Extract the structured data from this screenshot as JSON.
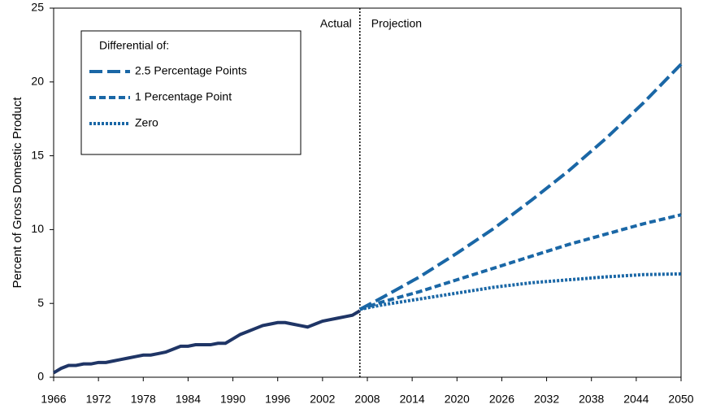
{
  "chart_data": {
    "type": "line",
    "ylabel": "Percent of Gross Domestic Product",
    "x": [
      1966,
      1967,
      1968,
      1969,
      1970,
      1971,
      1972,
      1973,
      1974,
      1975,
      1976,
      1977,
      1978,
      1979,
      1980,
      1981,
      1982,
      1983,
      1984,
      1985,
      1986,
      1987,
      1988,
      1989,
      1990,
      1991,
      1992,
      1993,
      1994,
      1995,
      1996,
      1997,
      1998,
      1999,
      2000,
      2001,
      2002,
      2003,
      2004,
      2005,
      2006,
      2007,
      2010,
      2015,
      2020,
      2025,
      2030,
      2035,
      2040,
      2045,
      2050
    ],
    "series": [
      {
        "color": "#1f3566",
        "dash": "solid",
        "values": [
          0.3,
          0.6,
          0.8,
          0.8,
          0.9,
          0.9,
          1.0,
          1.0,
          1.1,
          1.2,
          1.3,
          1.4,
          1.5,
          1.5,
          1.6,
          1.7,
          1.9,
          2.1,
          2.1,
          2.2,
          2.2,
          2.2,
          2.3,
          2.3,
          2.6,
          2.9,
          3.1,
          3.3,
          3.5,
          3.6,
          3.7,
          3.7,
          3.6,
          3.5,
          3.4,
          3.6,
          3.8,
          3.9,
          4.0,
          4.1,
          4.2,
          4.5,
          null,
          null,
          null,
          null,
          null,
          null,
          null,
          null,
          null
        ]
      },
      {
        "name": "2.5 Percentage Points",
        "color": "#1a67a6",
        "dash": "long",
        "values": [
          null,
          null,
          null,
          null,
          null,
          null,
          null,
          null,
          null,
          null,
          null,
          null,
          null,
          null,
          null,
          null,
          null,
          null,
          null,
          null,
          null,
          null,
          null,
          null,
          null,
          null,
          null,
          null,
          null,
          null,
          null,
          null,
          null,
          null,
          null,
          null,
          null,
          null,
          null,
          null,
          null,
          4.6,
          5.4,
          6.8,
          8.4,
          10.1,
          12.0,
          14.0,
          16.2,
          18.6,
          21.2
        ]
      },
      {
        "name": "1 Percentage Point",
        "color": "#1a67a6",
        "dash": "medium",
        "values": [
          null,
          null,
          null,
          null,
          null,
          null,
          null,
          null,
          null,
          null,
          null,
          null,
          null,
          null,
          null,
          null,
          null,
          null,
          null,
          null,
          null,
          null,
          null,
          null,
          null,
          null,
          null,
          null,
          null,
          null,
          null,
          null,
          null,
          null,
          null,
          null,
          null,
          null,
          null,
          null,
          null,
          4.6,
          5.1,
          5.8,
          6.6,
          7.4,
          8.2,
          9.0,
          9.7,
          10.4,
          11.0
        ]
      },
      {
        "name": "Zero",
        "color": "#1a67a6",
        "dash": "dot",
        "values": [
          null,
          null,
          null,
          null,
          null,
          null,
          null,
          null,
          null,
          null,
          null,
          null,
          null,
          null,
          null,
          null,
          null,
          null,
          null,
          null,
          null,
          null,
          null,
          null,
          null,
          null,
          null,
          null,
          null,
          null,
          null,
          null,
          null,
          null,
          null,
          null,
          null,
          null,
          null,
          null,
          null,
          4.6,
          4.9,
          5.3,
          5.7,
          6.1,
          6.4,
          6.6,
          6.8,
          6.95,
          7.0
        ]
      }
    ],
    "legend_title": "Differential of:",
    "legend": "upper left",
    "divider": 2007,
    "annotations": [
      "Actual",
      "Projection"
    ],
    "xlim": [
      1966,
      2050
    ],
    "xticks": [
      1966,
      1972,
      1978,
      1984,
      1990,
      1996,
      2002,
      2008,
      2014,
      2020,
      2026,
      2032,
      2038,
      2044,
      2050
    ],
    "ylim": [
      0,
      25
    ],
    "yticks": [
      0,
      5,
      10,
      15,
      20,
      25
    ]
  }
}
